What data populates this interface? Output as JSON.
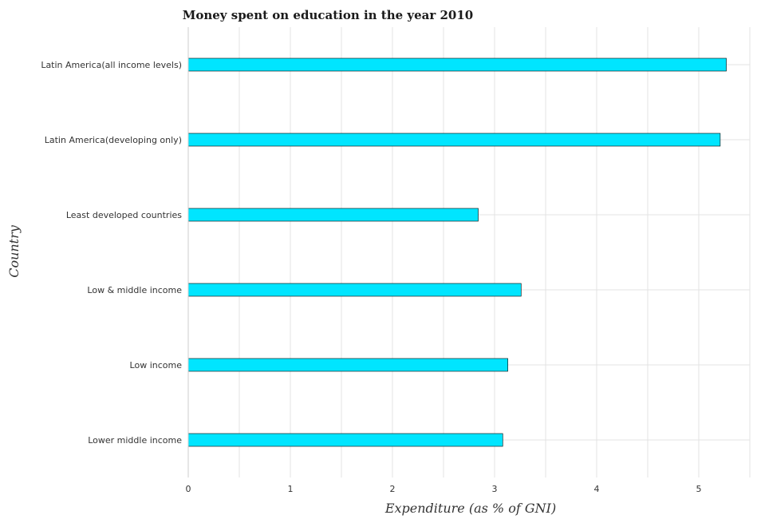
{
  "chart_data": {
    "type": "bar",
    "orientation": "horizontal",
    "title": "Money spent on education in the year 2010",
    "xlabel": "Expenditure (as % of GNI)",
    "ylabel": "Country",
    "categories": [
      "Latin America(all income levels)",
      "Latin America(developing only)",
      "Least developed countries",
      "Low & middle income",
      "Low income",
      "Lower middle income"
    ],
    "values": [
      5.27,
      5.21,
      2.84,
      3.26,
      3.13,
      3.08
    ],
    "xlim": [
      0,
      5.5
    ],
    "xticks": [
      "0",
      "1",
      "2",
      "3",
      "4",
      "5"
    ],
    "grid": true,
    "bar_color": "#00e5ff"
  }
}
